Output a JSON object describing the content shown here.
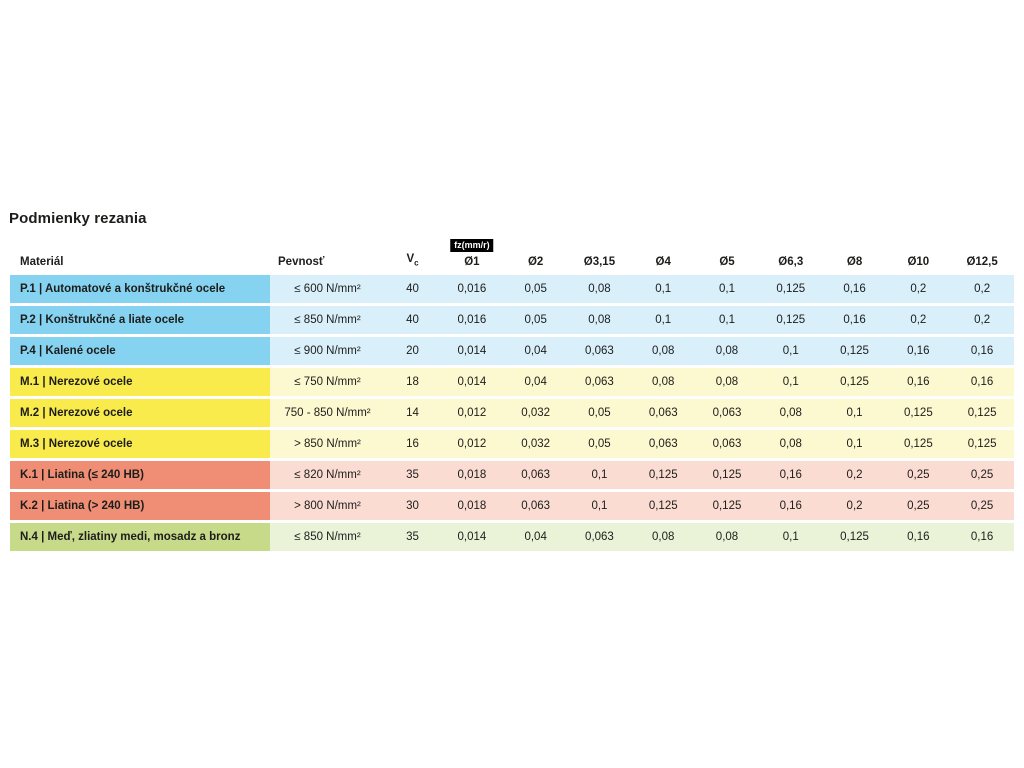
{
  "page": {
    "title": "Podmienky rezania"
  },
  "table": {
    "headers": {
      "material": "Materiál",
      "strength": "Pevnosť",
      "vc": "V",
      "vc_sub": "c",
      "fz_badge": "fz(mm/r)",
      "diameters": [
        "Ø1",
        "Ø2",
        "Ø3,15",
        "Ø4",
        "Ø5",
        "Ø6,3",
        "Ø8",
        "Ø10",
        "Ø12,5"
      ]
    },
    "groups": {
      "P": {
        "label_bg": "#85d3f0",
        "cell_bg": "#d9effa"
      },
      "M": {
        "label_bg": "#f8eb4b",
        "cell_bg": "#fcf8cf"
      },
      "K": {
        "label_bg": "#ef8e75",
        "cell_bg": "#fadcd2"
      },
      "N": {
        "label_bg": "#c6da89",
        "cell_bg": "#eaf2d8"
      }
    },
    "rows": [
      {
        "group": "P",
        "material": "P.1 | Automatové a konštrukčné ocele",
        "strength": "≤ 600 N/mm²",
        "vc": "40",
        "values": [
          "0,016",
          "0,05",
          "0,08",
          "0,1",
          "0,1",
          "0,125",
          "0,16",
          "0,2",
          "0,2"
        ]
      },
      {
        "group": "P",
        "material": "P.2 | Konštrukčné a liate ocele",
        "strength": "≤ 850 N/mm²",
        "vc": "40",
        "values": [
          "0,016",
          "0,05",
          "0,08",
          "0,1",
          "0,1",
          "0,125",
          "0,16",
          "0,2",
          "0,2"
        ]
      },
      {
        "group": "P",
        "material": "P.4 | Kalené ocele",
        "strength": "≤ 900 N/mm²",
        "vc": "20",
        "values": [
          "0,014",
          "0,04",
          "0,063",
          "0,08",
          "0,08",
          "0,1",
          "0,125",
          "0,16",
          "0,16"
        ]
      },
      {
        "group": "M",
        "material": "M.1 | Nerezové ocele",
        "strength": "≤ 750 N/mm²",
        "vc": "18",
        "values": [
          "0,014",
          "0,04",
          "0,063",
          "0,08",
          "0,08",
          "0,1",
          "0,125",
          "0,16",
          "0,16"
        ]
      },
      {
        "group": "M",
        "material": "M.2 | Nerezové ocele",
        "strength": "750 - 850 N/mm²",
        "vc": "14",
        "values": [
          "0,012",
          "0,032",
          "0,05",
          "0,063",
          "0,063",
          "0,08",
          "0,1",
          "0,125",
          "0,125"
        ]
      },
      {
        "group": "M",
        "material": "M.3 | Nerezové ocele",
        "strength": "> 850 N/mm²",
        "vc": "16",
        "values": [
          "0,012",
          "0,032",
          "0,05",
          "0,063",
          "0,063",
          "0,08",
          "0,1",
          "0,125",
          "0,125"
        ]
      },
      {
        "group": "K",
        "material": "K.1 | Liatina (≤ 240 HB)",
        "strength": "≤ 820 N/mm²",
        "vc": "35",
        "values": [
          "0,018",
          "0,063",
          "0,1",
          "0,125",
          "0,125",
          "0,16",
          "0,2",
          "0,25",
          "0,25"
        ]
      },
      {
        "group": "K",
        "material": "K.2 | Liatina (> 240 HB)",
        "strength": "> 800 N/mm²",
        "vc": "30",
        "values": [
          "0,018",
          "0,063",
          "0,1",
          "0,125",
          "0,125",
          "0,16",
          "0,2",
          "0,25",
          "0,25"
        ]
      },
      {
        "group": "N",
        "material": "N.4 | Meď, zliatiny medi, mosadz a bronz",
        "strength": "≤ 850 N/mm²",
        "vc": "35",
        "values": [
          "0,014",
          "0,04",
          "0,063",
          "0,08",
          "0,08",
          "0,1",
          "0,125",
          "0,16",
          "0,16"
        ]
      }
    ]
  }
}
